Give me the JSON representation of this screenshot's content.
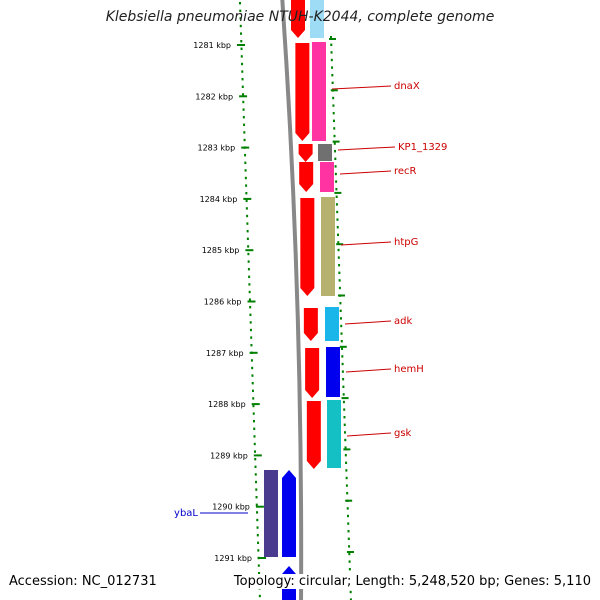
{
  "title": "Klebsiella pneumoniae NTUH-K2044, complete genome",
  "footer": {
    "accession": "Accession: NC_012731",
    "topology": "Topology: circular; Length: 5,248,520 bp; Genes: 5,110"
  },
  "axis": {
    "unit": "kbp",
    "ticks": [
      "1281 kbp",
      "1282 kbp",
      "1283 kbp",
      "1284 kbp",
      "1285 kbp",
      "1286 kbp",
      "1287 kbp",
      "1288 kbp",
      "1289 kbp",
      "1290 kbp",
      "1291 kbp"
    ]
  },
  "genes": [
    {
      "label": "dnaX",
      "color": "#ff33a1"
    },
    {
      "label": "KP1_1329",
      "color": "#707070"
    },
    {
      "label": "recR",
      "color": "#ff33a1"
    },
    {
      "label": "htpG",
      "color": "#b7b170"
    },
    {
      "label": "adk",
      "color": "#1ab6ea"
    },
    {
      "label": "hemH",
      "color": "#0000ee"
    },
    {
      "label": "gsk",
      "color": "#15c0c5"
    },
    {
      "label": "ybaL",
      "color": "#4a3b8f"
    }
  ],
  "colors": {
    "tick": "#008000",
    "strand_forward": "#ff0000",
    "label_red": "#cc0000",
    "label_blue": "#0000cc",
    "backbone": "#888888"
  }
}
